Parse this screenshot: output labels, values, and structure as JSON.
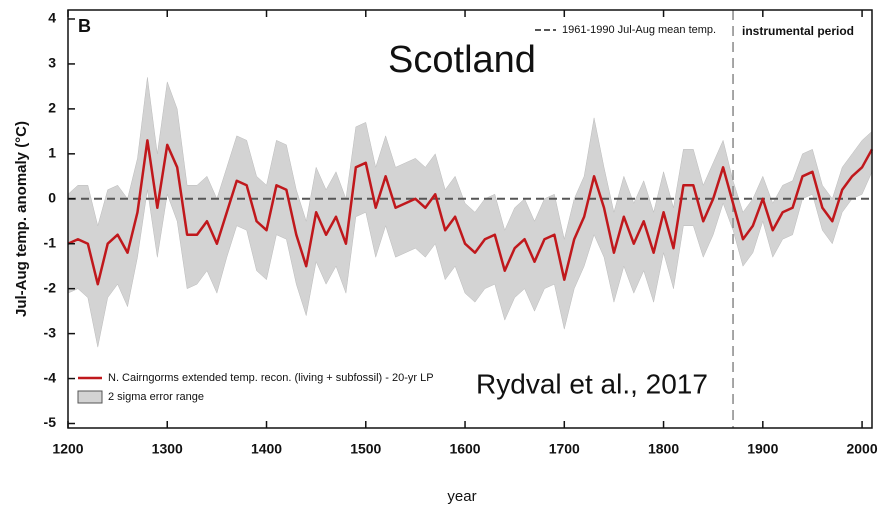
{
  "chart_data": {
    "type": "line",
    "panel_label": "B",
    "title": "Scotland",
    "annotation": "Rydval et al., 2017",
    "xlabel": "year",
    "ylabel": "Jul-Aug temp. anomaly (°C)",
    "xlim": [
      1200,
      2010
    ],
    "ylim": [
      -5.1,
      4.2
    ],
    "xticks": [
      1200,
      1300,
      1400,
      1500,
      1600,
      1700,
      1800,
      1900,
      2000
    ],
    "yticks": [
      -5,
      -4,
      -3,
      -2,
      -1,
      0,
      1,
      2,
      3,
      4
    ],
    "reference": {
      "value": 0,
      "label": "1961-1990 Jul-Aug mean temp."
    },
    "period": {
      "start": 1870,
      "label": "instrumental period"
    },
    "x": [
      1200,
      1210,
      1220,
      1230,
      1240,
      1250,
      1260,
      1270,
      1280,
      1290,
      1300,
      1310,
      1320,
      1330,
      1340,
      1350,
      1360,
      1370,
      1380,
      1390,
      1400,
      1410,
      1420,
      1430,
      1440,
      1450,
      1460,
      1470,
      1480,
      1490,
      1500,
      1510,
      1520,
      1530,
      1540,
      1550,
      1560,
      1570,
      1580,
      1590,
      1600,
      1610,
      1620,
      1630,
      1640,
      1650,
      1660,
      1670,
      1680,
      1690,
      1700,
      1710,
      1720,
      1730,
      1740,
      1750,
      1760,
      1770,
      1780,
      1790,
      1800,
      1810,
      1820,
      1830,
      1840,
      1850,
      1860,
      1870,
      1880,
      1890,
      1900,
      1910,
      1920,
      1930,
      1940,
      1950,
      1960,
      1970,
      1980,
      1990,
      2000,
      2010
    ],
    "series": [
      {
        "name": "N. Cairngorms extended temp. recon. (living + subfossil) - 20-yr LP",
        "color": "#c0181c",
        "values": [
          -1.0,
          -0.9,
          -1.0,
          -1.9,
          -1.0,
          -0.8,
          -1.2,
          -0.3,
          1.3,
          -0.2,
          1.2,
          0.7,
          -0.8,
          -0.8,
          -0.5,
          -1.0,
          -0.3,
          0.4,
          0.3,
          -0.5,
          -0.7,
          0.3,
          0.2,
          -0.8,
          -1.5,
          -0.3,
          -0.8,
          -0.4,
          -1.0,
          0.7,
          0.8,
          -0.2,
          0.5,
          -0.2,
          -0.1,
          0.0,
          -0.2,
          0.1,
          -0.7,
          -0.4,
          -1.0,
          -1.2,
          -0.9,
          -0.8,
          -1.6,
          -1.1,
          -0.9,
          -1.4,
          -0.9,
          -0.8,
          -1.8,
          -0.9,
          -0.4,
          0.5,
          -0.2,
          -1.2,
          -0.4,
          -1.0,
          -0.5,
          -1.2,
          -0.3,
          -1.1,
          0.3,
          0.3,
          -0.5,
          0.0,
          0.7,
          -0.1,
          -0.9,
          -0.6,
          0.0,
          -0.7,
          -0.3,
          -0.2,
          0.5,
          0.6,
          -0.2,
          -0.5,
          0.2,
          0.5,
          0.7,
          1.1
        ]
      }
    ],
    "band": {
      "name": "2 sigma error range",
      "color": "#d3d3d3",
      "upper": [
        0.1,
        0.3,
        0.3,
        -0.6,
        0.2,
        0.3,
        0.0,
        0.9,
        2.7,
        1.0,
        2.6,
        2.0,
        0.3,
        0.3,
        0.5,
        0.0,
        0.7,
        1.4,
        1.3,
        0.5,
        0.3,
        1.3,
        1.2,
        0.2,
        -0.5,
        0.7,
        0.2,
        0.6,
        0.0,
        1.6,
        1.7,
        0.7,
        1.4,
        0.7,
        0.8,
        0.9,
        0.7,
        1.0,
        0.2,
        0.5,
        -0.1,
        -0.3,
        0.0,
        0.1,
        -0.7,
        -0.2,
        0.0,
        -0.5,
        0.0,
        0.1,
        -0.9,
        0.0,
        0.5,
        1.8,
        0.7,
        -0.3,
        0.5,
        -0.1,
        0.4,
        -0.3,
        0.6,
        -0.2,
        1.1,
        1.1,
        0.3,
        0.8,
        1.3,
        0.4,
        -0.3,
        0.0,
        0.5,
        -0.1,
        0.3,
        0.4,
        1.0,
        1.1,
        0.3,
        0.0,
        0.7,
        1.0,
        1.3,
        1.5
      ],
      "lower": [
        -2.1,
        -2.0,
        -2.2,
        -3.3,
        -2.2,
        -1.9,
        -2.4,
        -1.3,
        0.2,
        -1.3,
        0.1,
        -0.5,
        -2.0,
        -1.9,
        -1.6,
        -2.1,
        -1.3,
        -0.6,
        -0.7,
        -1.6,
        -1.8,
        -0.8,
        -0.9,
        -1.9,
        -2.6,
        -1.4,
        -1.9,
        -1.5,
        -2.1,
        -0.4,
        -0.3,
        -1.3,
        -0.6,
        -1.3,
        -1.2,
        -1.1,
        -1.3,
        -1.0,
        -1.8,
        -1.5,
        -2.1,
        -2.3,
        -2.0,
        -1.9,
        -2.7,
        -2.2,
        -2.0,
        -2.5,
        -2.0,
        -1.9,
        -2.9,
        -2.0,
        -1.5,
        -0.8,
        -1.3,
        -2.3,
        -1.5,
        -2.1,
        -1.6,
        -2.3,
        -1.2,
        -2.0,
        -0.6,
        -0.6,
        -1.3,
        -0.8,
        -0.1,
        -0.7,
        -1.5,
        -1.2,
        -0.5,
        -1.3,
        -0.9,
        -0.8,
        0.0,
        0.1,
        -0.7,
        -1.0,
        -0.3,
        0.0,
        0.1,
        0.6
      ]
    }
  }
}
